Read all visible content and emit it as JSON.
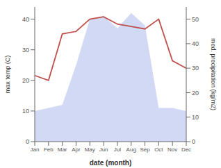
{
  "chart_data": {
    "type": "combo",
    "xlabel": "date (month)",
    "ylabel": "max temp (C)",
    "y2label": "med. precipitation (kg/m2)",
    "categories": [
      "Jan",
      "Feb",
      "Mar",
      "Apr",
      "May",
      "Jun",
      "Jul",
      "Aug",
      "Sep",
      "Oct",
      "Nov",
      "Dec"
    ],
    "series": [
      {
        "type": "area",
        "color": "#b8c4ee",
        "values": [
          10,
          11,
          12,
          25,
          40,
          41,
          37,
          42,
          38,
          11,
          11,
          10
        ]
      },
      {
        "type": "line",
        "color": "#c0504d",
        "axis": "y2",
        "values": [
          27,
          25,
          44,
          45,
          50,
          51,
          48,
          47,
          46,
          50,
          33,
          30
        ]
      }
    ],
    "ylim": [
      0,
      44
    ],
    "yticks": [
      0,
      10,
      20,
      30,
      40
    ],
    "y2lim": [
      0,
      55
    ],
    "y2ticks": [
      0,
      10,
      20,
      30,
      40,
      50
    ],
    "grid": false
  }
}
